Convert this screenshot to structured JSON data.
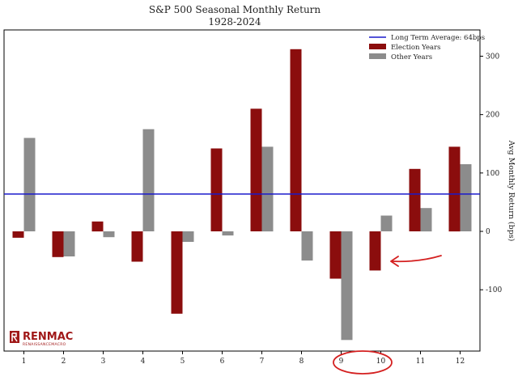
{
  "chart_data": {
    "type": "bar",
    "title": "S&P 500 Seasonal Monthly Return",
    "subtitle": "1928-2024",
    "xlabel": "",
    "ylabel": "Avg Monthly Return (bps)",
    "categories": [
      "1",
      "2",
      "3",
      "4",
      "5",
      "6",
      "7",
      "8",
      "9",
      "10",
      "11",
      "12"
    ],
    "series": [
      {
        "name": "Election Years",
        "color": "#8b0d0d",
        "values": [
          -11,
          -44,
          17,
          -52,
          -141,
          142,
          210,
          312,
          -81,
          -67,
          107,
          145
        ]
      },
      {
        "name": "Other Years",
        "color": "#8c8c8c",
        "values": [
          160,
          -43,
          -10,
          175,
          -18,
          -7,
          145,
          -50,
          -186,
          27,
          40,
          115
        ]
      }
    ],
    "reference_line": {
      "label": "Long Term Average: 64bps",
      "value": 64,
      "color": "#1a1acc"
    },
    "yticks": [
      -100,
      0,
      100,
      200,
      300
    ],
    "ylim": [
      -205,
      345
    ],
    "yaxis_position": "right",
    "legend_position": "top-right",
    "grid": false,
    "annotations": [
      {
        "type": "arrow",
        "target_category": "10",
        "color": "#d42020"
      },
      {
        "type": "circle",
        "target_categories": [
          "9",
          "10"
        ],
        "color": "#d42020"
      }
    ]
  },
  "logo": {
    "main": "RENMAC",
    "sub": "RENAISSANCEMACRO"
  }
}
